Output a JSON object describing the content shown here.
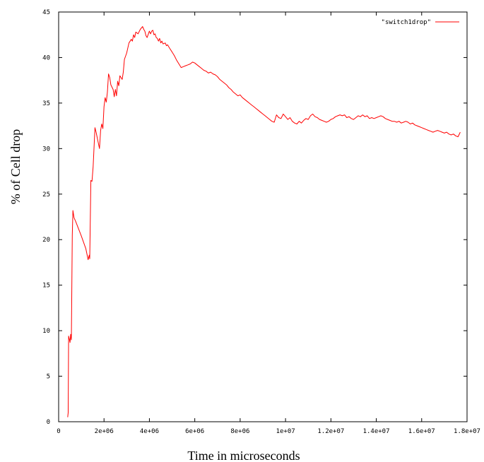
{
  "chart_data": {
    "type": "line",
    "title": "",
    "xlabel": "Time in microseconds",
    "ylabel": "% of Cell drop",
    "xlim": [
      0,
      18000000
    ],
    "ylim": [
      0,
      45
    ],
    "x_ticks": [
      {
        "value": 0,
        "label": "0"
      },
      {
        "value": 2000000,
        "label": "2e+06"
      },
      {
        "value": 4000000,
        "label": "4e+06"
      },
      {
        "value": 6000000,
        "label": "6e+06"
      },
      {
        "value": 8000000,
        "label": "8e+06"
      },
      {
        "value": 10000000,
        "label": "1e+07"
      },
      {
        "value": 12000000,
        "label": "1.2e+07"
      },
      {
        "value": 14000000,
        "label": "1.4e+07"
      },
      {
        "value": 16000000,
        "label": "1.6e+07"
      },
      {
        "value": 18000000,
        "label": "1.8e+07"
      }
    ],
    "y_ticks": [
      {
        "value": 0,
        "label": "0"
      },
      {
        "value": 5,
        "label": "5"
      },
      {
        "value": 10,
        "label": "10"
      },
      {
        "value": 15,
        "label": "15"
      },
      {
        "value": 20,
        "label": "20"
      },
      {
        "value": 25,
        "label": "25"
      },
      {
        "value": 30,
        "label": "30"
      },
      {
        "value": 35,
        "label": "35"
      },
      {
        "value": 40,
        "label": "40"
      },
      {
        "value": 45,
        "label": "45"
      }
    ],
    "grid": false,
    "legend": "top-right",
    "series": [
      {
        "name": "\"switch1drop\"",
        "color": "#ff0000",
        "points": [
          [
            400000,
            0.5
          ],
          [
            420000,
            1.0
          ],
          [
            440000,
            9.4
          ],
          [
            480000,
            9.0
          ],
          [
            500000,
            8.7
          ],
          [
            530000,
            9.6
          ],
          [
            560000,
            9.0
          ],
          [
            600000,
            20.5
          ],
          [
            630000,
            23.2
          ],
          [
            680000,
            22.4
          ],
          [
            750000,
            22.0
          ],
          [
            1000000,
            20.4
          ],
          [
            1200000,
            19.0
          ],
          [
            1300000,
            17.8
          ],
          [
            1350000,
            18.3
          ],
          [
            1370000,
            17.9
          ],
          [
            1420000,
            26.5
          ],
          [
            1470000,
            26.4
          ],
          [
            1520000,
            28.0
          ],
          [
            1600000,
            32.3
          ],
          [
            1650000,
            31.8
          ],
          [
            1700000,
            31.2
          ],
          [
            1800000,
            30.0
          ],
          [
            1850000,
            32.0
          ],
          [
            1900000,
            32.7
          ],
          [
            1950000,
            32.2
          ],
          [
            2000000,
            34.6
          ],
          [
            2050000,
            35.6
          ],
          [
            2100000,
            35.1
          ],
          [
            2150000,
            36.2
          ],
          [
            2200000,
            38.2
          ],
          [
            2250000,
            37.8
          ],
          [
            2300000,
            37.0
          ],
          [
            2400000,
            36.5
          ],
          [
            2450000,
            35.7
          ],
          [
            2500000,
            36.5
          ],
          [
            2550000,
            35.8
          ],
          [
            2600000,
            37.4
          ],
          [
            2650000,
            36.9
          ],
          [
            2700000,
            38.0
          ],
          [
            2800000,
            37.6
          ],
          [
            2850000,
            38.4
          ],
          [
            2900000,
            39.8
          ],
          [
            3000000,
            40.5
          ],
          [
            3100000,
            41.6
          ],
          [
            3200000,
            42.0
          ],
          [
            3250000,
            41.8
          ],
          [
            3300000,
            42.5
          ],
          [
            3350000,
            42.2
          ],
          [
            3400000,
            42.8
          ],
          [
            3500000,
            42.6
          ],
          [
            3600000,
            43.1
          ],
          [
            3700000,
            43.4
          ],
          [
            3750000,
            43.1
          ],
          [
            3800000,
            42.9
          ],
          [
            3850000,
            42.4
          ],
          [
            3900000,
            42.2
          ],
          [
            4000000,
            42.9
          ],
          [
            4050000,
            42.6
          ],
          [
            4100000,
            42.9
          ],
          [
            4150000,
            43.0
          ],
          [
            4200000,
            42.5
          ],
          [
            4250000,
            42.6
          ],
          [
            4300000,
            42.2
          ],
          [
            4350000,
            42.1
          ],
          [
            4400000,
            41.8
          ],
          [
            4450000,
            42.1
          ],
          [
            4500000,
            41.6
          ],
          [
            4550000,
            41.8
          ],
          [
            4600000,
            41.5
          ],
          [
            4700000,
            41.6
          ],
          [
            4750000,
            41.3
          ],
          [
            4800000,
            41.4
          ],
          [
            4900000,
            41.0
          ],
          [
            5000000,
            40.6
          ],
          [
            5100000,
            40.2
          ],
          [
            5200000,
            39.7
          ],
          [
            5300000,
            39.3
          ],
          [
            5400000,
            38.9
          ],
          [
            5500000,
            39.0
          ],
          [
            5600000,
            39.1
          ],
          [
            5700000,
            39.2
          ],
          [
            5800000,
            39.3
          ],
          [
            5900000,
            39.5
          ],
          [
            6000000,
            39.4
          ],
          [
            6100000,
            39.2
          ],
          [
            6200000,
            39.0
          ],
          [
            6300000,
            38.8
          ],
          [
            6400000,
            38.6
          ],
          [
            6500000,
            38.5
          ],
          [
            6600000,
            38.3
          ],
          [
            6700000,
            38.4
          ],
          [
            6800000,
            38.2
          ],
          [
            6900000,
            38.1
          ],
          [
            7000000,
            37.9
          ],
          [
            7100000,
            37.6
          ],
          [
            7200000,
            37.4
          ],
          [
            7300000,
            37.2
          ],
          [
            7400000,
            37.0
          ],
          [
            7500000,
            36.7
          ],
          [
            7600000,
            36.5
          ],
          [
            7700000,
            36.2
          ],
          [
            7800000,
            36.0
          ],
          [
            7900000,
            35.8
          ],
          [
            8000000,
            35.9
          ],
          [
            8100000,
            35.6
          ],
          [
            8200000,
            35.4
          ],
          [
            8300000,
            35.2
          ],
          [
            8400000,
            35.0
          ],
          [
            8500000,
            34.8
          ],
          [
            8600000,
            34.6
          ],
          [
            8700000,
            34.4
          ],
          [
            8800000,
            34.2
          ],
          [
            8900000,
            34.0
          ],
          [
            9000000,
            33.8
          ],
          [
            9100000,
            33.6
          ],
          [
            9200000,
            33.4
          ],
          [
            9300000,
            33.2
          ],
          [
            9400000,
            33.0
          ],
          [
            9500000,
            32.9
          ],
          [
            9600000,
            33.7
          ],
          [
            9700000,
            33.4
          ],
          [
            9800000,
            33.3
          ],
          [
            9900000,
            33.8
          ],
          [
            10000000,
            33.5
          ],
          [
            10100000,
            33.2
          ],
          [
            10200000,
            33.4
          ],
          [
            10300000,
            33.0
          ],
          [
            10400000,
            32.8
          ],
          [
            10500000,
            32.7
          ],
          [
            10600000,
            33.0
          ],
          [
            10700000,
            32.8
          ],
          [
            10800000,
            33.1
          ],
          [
            10900000,
            33.3
          ],
          [
            11000000,
            33.2
          ],
          [
            11100000,
            33.6
          ],
          [
            11200000,
            33.8
          ],
          [
            11300000,
            33.5
          ],
          [
            11400000,
            33.4
          ],
          [
            11500000,
            33.2
          ],
          [
            11600000,
            33.1
          ],
          [
            11700000,
            33.0
          ],
          [
            11800000,
            32.9
          ],
          [
            11900000,
            33.0
          ],
          [
            12000000,
            33.2
          ],
          [
            12100000,
            33.3
          ],
          [
            12200000,
            33.5
          ],
          [
            12300000,
            33.6
          ],
          [
            12400000,
            33.7
          ],
          [
            12500000,
            33.6
          ],
          [
            12600000,
            33.7
          ],
          [
            12700000,
            33.4
          ],
          [
            12800000,
            33.5
          ],
          [
            12900000,
            33.3
          ],
          [
            13000000,
            33.2
          ],
          [
            13100000,
            33.4
          ],
          [
            13200000,
            33.6
          ],
          [
            13300000,
            33.5
          ],
          [
            13400000,
            33.7
          ],
          [
            13500000,
            33.5
          ],
          [
            13600000,
            33.6
          ],
          [
            13700000,
            33.3
          ],
          [
            13800000,
            33.4
          ],
          [
            13900000,
            33.3
          ],
          [
            14000000,
            33.4
          ],
          [
            14100000,
            33.5
          ],
          [
            14200000,
            33.6
          ],
          [
            14300000,
            33.5
          ],
          [
            14400000,
            33.3
          ],
          [
            14500000,
            33.2
          ],
          [
            14600000,
            33.1
          ],
          [
            14700000,
            33.0
          ],
          [
            14800000,
            33.0
          ],
          [
            14900000,
            32.9
          ],
          [
            15000000,
            33.0
          ],
          [
            15100000,
            32.8
          ],
          [
            15200000,
            32.9
          ],
          [
            15300000,
            33.0
          ],
          [
            15400000,
            32.9
          ],
          [
            15500000,
            32.7
          ],
          [
            15600000,
            32.8
          ],
          [
            15700000,
            32.6
          ],
          [
            15800000,
            32.5
          ],
          [
            15900000,
            32.4
          ],
          [
            16000000,
            32.3
          ],
          [
            16100000,
            32.2
          ],
          [
            16200000,
            32.1
          ],
          [
            16300000,
            32.0
          ],
          [
            16400000,
            31.9
          ],
          [
            16500000,
            31.8
          ],
          [
            16600000,
            31.9
          ],
          [
            16700000,
            32.0
          ],
          [
            16800000,
            31.9
          ],
          [
            16900000,
            31.8
          ],
          [
            17000000,
            31.7
          ],
          [
            17100000,
            31.8
          ],
          [
            17200000,
            31.6
          ],
          [
            17300000,
            31.5
          ],
          [
            17400000,
            31.6
          ],
          [
            17500000,
            31.4
          ],
          [
            17600000,
            31.3
          ],
          [
            17700000,
            31.8
          ]
        ]
      }
    ]
  }
}
